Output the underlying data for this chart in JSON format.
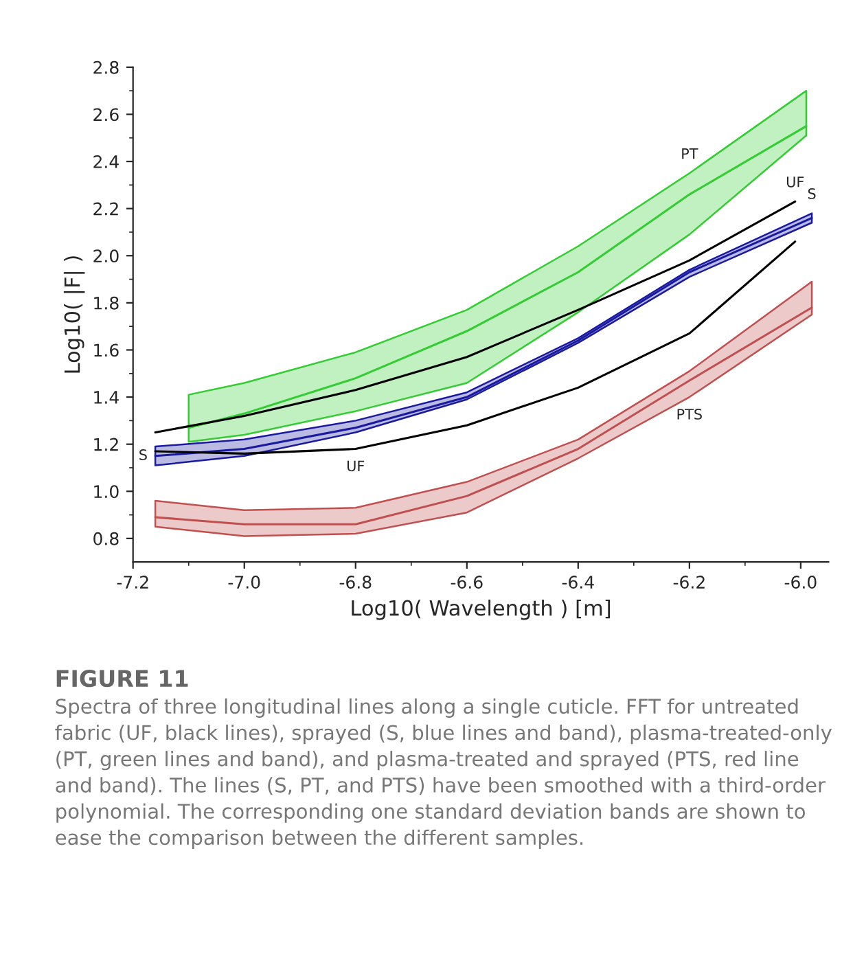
{
  "chart_data": {
    "type": "line",
    "title": "FIGURE 11",
    "xlabel": "Log10( Wavelength ) [m]",
    "ylabel": "Log10( |F| )",
    "xlim": [
      -7.2,
      -5.95
    ],
    "ylim": [
      0.7,
      2.8
    ],
    "xticks": [
      -7.2,
      {
        "value": -7.0,
        "label": "-7.0"
      },
      -6.8,
      -6.6,
      -6.4,
      -6.2,
      {
        "value": -6.0,
        "label": "-6.0"
      }
    ],
    "yticks": [
      0.8,
      {
        "value": 1.0,
        "label": "1.0"
      },
      1.2,
      1.4,
      1.6,
      1.8,
      {
        "value": 2.0,
        "label": "2.0"
      },
      2.2,
      2.4,
      2.6,
      2.8
    ],
    "grid": false,
    "legend": false,
    "marker": "none",
    "line_style": "solid",
    "series": [
      {
        "color": "#33cc33",
        "x": [
          -7.1,
          -7.0,
          -6.8,
          -6.6,
          -6.4,
          -6.2,
          -5.99
        ],
        "values": [
          1.27,
          1.33,
          1.48,
          1.68,
          1.93,
          2.26,
          2.55
        ],
        "lower": [
          1.21,
          1.24,
          1.34,
          1.46,
          1.76,
          2.09,
          2.51
        ],
        "upper": [
          1.41,
          1.46,
          1.59,
          1.77,
          2.04,
          2.35,
          2.7
        ]
      },
      {
        "color": "#000000",
        "x": [
          -7.16,
          -7.0,
          -6.8,
          -6.6,
          -6.4,
          -6.2,
          -6.01
        ],
        "values": [
          1.25,
          1.32,
          1.43,
          1.57,
          1.77,
          1.98,
          2.23
        ]
      },
      {
        "color": "#1a1aa0",
        "x": [
          -7.16,
          -7.0,
          -6.8,
          -6.6,
          -6.4,
          -6.2,
          -5.98
        ],
        "values": [
          1.15,
          1.18,
          1.27,
          1.4,
          1.64,
          1.93,
          2.16
        ],
        "lower": [
          1.11,
          1.15,
          1.25,
          1.39,
          1.63,
          1.91,
          2.14
        ],
        "upper": [
          1.19,
          1.22,
          1.3,
          1.42,
          1.65,
          1.94,
          2.18
        ]
      },
      {
        "color": "#000000",
        "x": [
          -7.16,
          -7.0,
          -6.8,
          -6.6,
          -6.4,
          -6.2,
          -6.01
        ],
        "values": [
          1.17,
          1.16,
          1.18,
          1.28,
          1.44,
          1.67,
          2.06
        ]
      },
      {
        "color": "#c05050",
        "x": [
          -7.16,
          -7.0,
          -6.8,
          -6.6,
          -6.4,
          -6.2,
          -5.98
        ],
        "values": [
          0.89,
          0.86,
          0.86,
          0.98,
          1.18,
          1.47,
          1.78
        ],
        "lower": [
          0.85,
          0.81,
          0.82,
          0.91,
          1.14,
          1.4,
          1.75
        ],
        "upper": [
          0.96,
          0.92,
          0.93,
          1.04,
          1.22,
          1.51,
          1.89
        ]
      }
    ],
    "annotations": [
      {
        "text": "PT",
        "x": -6.2,
        "y": 2.35
      },
      {
        "text": "UF",
        "x": -6.01,
        "y": 2.23
      },
      {
        "text": "S",
        "x": -5.98,
        "y": 2.18
      },
      {
        "text": "PTS",
        "x": -6.2,
        "y": 1.4
      },
      {
        "text": "S",
        "x": -7.16,
        "y": 1.15
      },
      {
        "text": "UF",
        "x": -6.8,
        "y": 1.18
      },
      "Spectra of three longitudinal lines along a single cuticle. FFT for untreated fabric (UF, black lines), sprayed (S, blue lines and band), plasma-treated-only (PT, green lines and band), and plasma-treated and sprayed (PTS, red line and band). The lines (S, PT, and PTS) have been smoothed with a third-order polynomial. The corresponding one standard deviation bands are shown to ease the comparison between the different samples."
    ]
  }
}
